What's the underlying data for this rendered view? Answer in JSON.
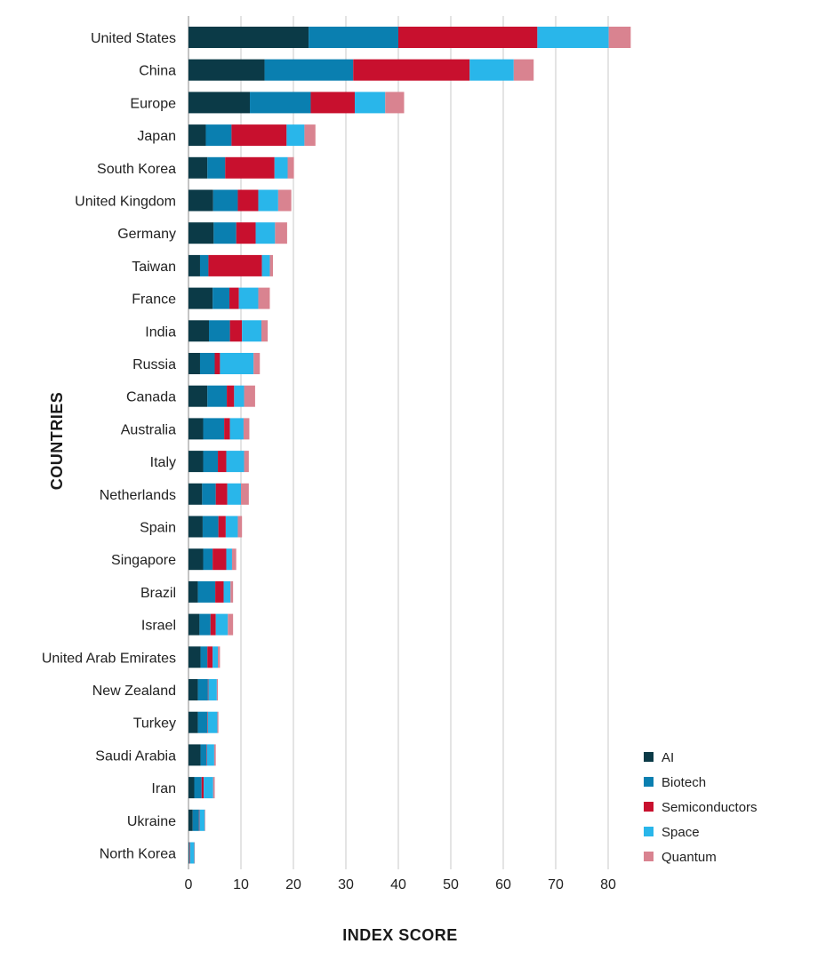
{
  "chart_data": {
    "type": "bar",
    "orientation": "horizontal",
    "stacked": true,
    "xlabel": "INDEX SCORE",
    "ylabel": "COUNTRIES",
    "xlim": [
      0,
      85
    ],
    "xticks": [
      0,
      10,
      20,
      30,
      40,
      50,
      60,
      70,
      80
    ],
    "grid": "vertical",
    "legend_position": "bottom-right",
    "categories": [
      "United States",
      "China",
      "Europe",
      "Japan",
      "South Korea",
      "United Kingdom",
      "Germany",
      "Taiwan",
      "France",
      "India",
      "Russia",
      "Canada",
      "Australia",
      "Italy",
      "Netherlands",
      "Spain",
      "Singapore",
      "Brazil",
      "Israel",
      "United Arab Emirates",
      "New Zealand",
      "Turkey",
      "Saudi Arabia",
      "Iran",
      "Ukraine",
      "North Korea"
    ],
    "series": [
      {
        "name": "AI",
        "color": "#0b3a47",
        "values": [
          22.9,
          14.5,
          11.7,
          3.3,
          3.6,
          4.7,
          4.8,
          2.2,
          4.6,
          3.9,
          2.2,
          3.6,
          2.8,
          2.8,
          2.6,
          2.7,
          2.8,
          1.8,
          2.1,
          2.3,
          1.8,
          1.8,
          2.3,
          1.1,
          0.8,
          0.1
        ]
      },
      {
        "name": "Biotech",
        "color": "#0a7fb0",
        "values": [
          17.1,
          16.9,
          11.6,
          4.9,
          3.4,
          4.7,
          4.3,
          1.6,
          3.2,
          4.0,
          2.8,
          3.7,
          4.0,
          2.8,
          2.6,
          3.0,
          1.8,
          3.3,
          2.1,
          1.3,
          1.9,
          1.8,
          1.1,
          1.4,
          1.2,
          0.1
        ]
      },
      {
        "name": "Semiconductors",
        "color": "#c8102e",
        "values": [
          26.5,
          22.2,
          8.4,
          10.5,
          9.4,
          3.9,
          3.7,
          10.2,
          1.8,
          2.3,
          1.0,
          1.4,
          1.1,
          1.6,
          2.2,
          1.4,
          2.6,
          1.6,
          1.0,
          1.0,
          0.1,
          0.1,
          0.1,
          0.4,
          0.1,
          0.1
        ]
      },
      {
        "name": "Space",
        "color": "#29b6ea",
        "values": [
          13.6,
          8.4,
          5.8,
          3.4,
          2.5,
          3.8,
          3.7,
          1.5,
          3.7,
          3.7,
          6.4,
          1.9,
          2.6,
          3.4,
          2.6,
          2.3,
          1.1,
          1.3,
          2.3,
          1.0,
          1.6,
          1.8,
          1.4,
          1.8,
          1.0,
          0.8
        ]
      },
      {
        "name": "Quantum",
        "color": "#d98390",
        "values": [
          4.2,
          3.8,
          3.6,
          2.1,
          1.2,
          2.5,
          2.3,
          0.6,
          2.2,
          1.2,
          1.2,
          2.1,
          1.1,
          0.9,
          1.5,
          0.8,
          0.8,
          0.5,
          1.0,
          0.4,
          0.2,
          0.2,
          0.3,
          0.3,
          0.1,
          0.1
        ]
      }
    ]
  }
}
